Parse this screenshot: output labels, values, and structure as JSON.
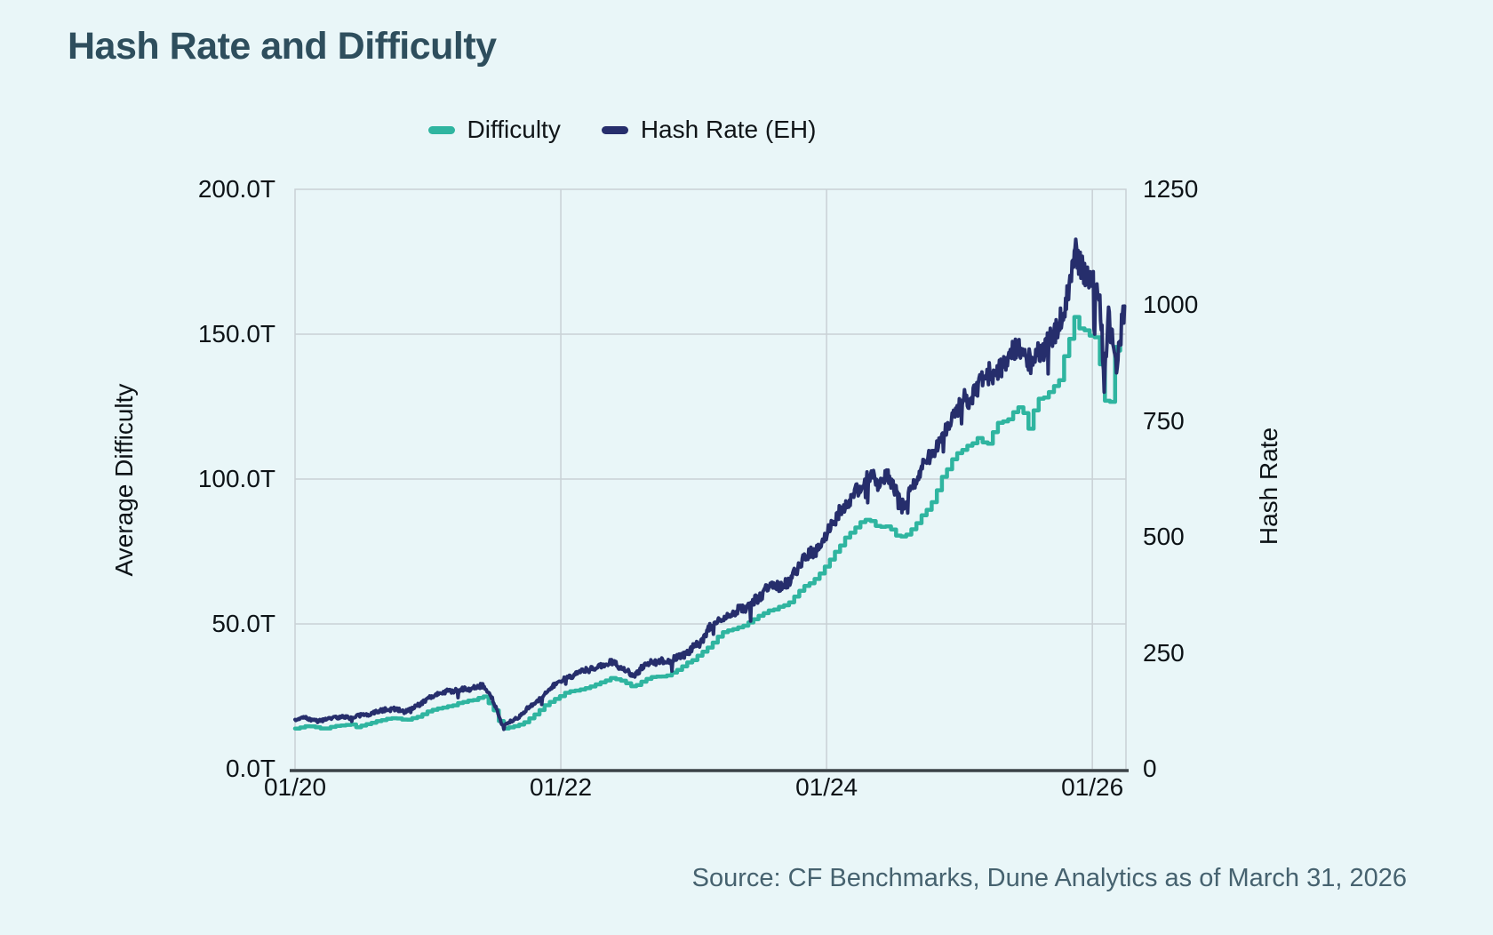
{
  "page": {
    "background": "#e9f6f8"
  },
  "header": {
    "title": "Hash Rate and Difficulty"
  },
  "legend": [
    {
      "label": "Difficulty",
      "color": "#2fb5a0"
    },
    {
      "label": "Hash Rate (EH)",
      "color": "#262e6c"
    }
  ],
  "footer": {
    "source": "Source: CF Benchmarks, Dune Analytics as of March 31, 2026"
  },
  "chart_data": {
    "type": "line",
    "title": "Hash Rate and Difficulty",
    "grid": true,
    "legend_position": "top-center",
    "style": {
      "grid_color": "#c9d1d5",
      "border_color": "#c9d1d5",
      "axis_line_color": "#3b4247",
      "plot_background": "#e9f6f8"
    },
    "x_axis": {
      "ticks": [
        "01/20",
        "01/22",
        "01/24",
        "01/26"
      ],
      "tick_years": [
        2020,
        2022,
        2024,
        2026
      ],
      "range_years": [
        2020.0,
        2026.253
      ],
      "data_end_year": 2026.245
    },
    "y_left": {
      "label": "Average Difficulty",
      "ticks": [
        "0.0T",
        "50.0T",
        "100.0T",
        "150.0T",
        "200.0T"
      ],
      "tick_values": [
        0,
        50,
        100,
        150,
        200
      ],
      "range": [
        0,
        200
      ]
    },
    "y_right": {
      "label": "Hash Rate",
      "ticks": [
        "0",
        "250",
        "500",
        "750",
        "1000",
        "1250"
      ],
      "tick_values": [
        0,
        250,
        500,
        750,
        1000,
        1250
      ],
      "range": [
        0,
        1250
      ]
    },
    "series": [
      {
        "name": "Difficulty",
        "axis": "left",
        "unit": "T",
        "color": "#2fb5a0",
        "line_style": "step",
        "step_interval_days": 14,
        "points": [
          [
            2020.0,
            13.9
          ],
          [
            2020.08,
            14.8
          ],
          [
            2020.17,
            14.2
          ],
          [
            2020.21,
            13.7
          ],
          [
            2020.29,
            14.7
          ],
          [
            2020.42,
            15.3
          ],
          [
            2020.46,
            14.4
          ],
          [
            2020.58,
            16.0
          ],
          [
            2020.67,
            17.0
          ],
          [
            2020.75,
            17.6
          ],
          [
            2020.83,
            16.8
          ],
          [
            2020.92,
            18.0
          ],
          [
            2021.0,
            19.8
          ],
          [
            2021.08,
            21.0
          ],
          [
            2021.17,
            21.7
          ],
          [
            2021.25,
            23.0
          ],
          [
            2021.33,
            23.7
          ],
          [
            2021.42,
            25.0
          ],
          [
            2021.5,
            19.9
          ],
          [
            2021.56,
            13.9
          ],
          [
            2021.63,
            14.5
          ],
          [
            2021.71,
            15.6
          ],
          [
            2021.79,
            18.3
          ],
          [
            2021.88,
            21.9
          ],
          [
            2021.96,
            24.2
          ],
          [
            2022.04,
            26.6
          ],
          [
            2022.13,
            27.3
          ],
          [
            2022.21,
            28.2
          ],
          [
            2022.29,
            29.8
          ],
          [
            2022.38,
            31.3
          ],
          [
            2022.46,
            30.3
          ],
          [
            2022.54,
            28.2
          ],
          [
            2022.63,
            30.9
          ],
          [
            2022.71,
            31.9
          ],
          [
            2022.79,
            32.0
          ],
          [
            2022.88,
            34.2
          ],
          [
            2022.96,
            36.8
          ],
          [
            2023.04,
            39.2
          ],
          [
            2023.13,
            43.0
          ],
          [
            2023.21,
            46.8
          ],
          [
            2023.29,
            48.0
          ],
          [
            2023.38,
            49.5
          ],
          [
            2023.46,
            52.3
          ],
          [
            2023.54,
            53.9
          ],
          [
            2023.63,
            55.6
          ],
          [
            2023.71,
            57.3
          ],
          [
            2023.79,
            61.0
          ],
          [
            2023.88,
            64.7
          ],
          [
            2023.96,
            67.9
          ],
          [
            2024.04,
            73.2
          ],
          [
            2024.13,
            79.1
          ],
          [
            2024.21,
            83.1
          ],
          [
            2024.29,
            86.4
          ],
          [
            2024.38,
            84.0
          ],
          [
            2024.46,
            83.7
          ],
          [
            2024.54,
            79.5
          ],
          [
            2024.63,
            82.0
          ],
          [
            2024.71,
            86.9
          ],
          [
            2024.79,
            92.0
          ],
          [
            2024.88,
            101.6
          ],
          [
            2024.96,
            108.5
          ],
          [
            2025.04,
            110.2
          ],
          [
            2025.13,
            113.8
          ],
          [
            2025.21,
            112.1
          ],
          [
            2025.29,
            119.0
          ],
          [
            2025.38,
            121.6
          ],
          [
            2025.46,
            126.4
          ],
          [
            2025.52,
            117.0
          ],
          [
            2025.58,
            127.3
          ],
          [
            2025.67,
            129.7
          ],
          [
            2025.75,
            134.9
          ],
          [
            2025.81,
            146.0
          ],
          [
            2025.86,
            155.8
          ],
          [
            2025.92,
            151.0
          ],
          [
            2025.98,
            150.2
          ],
          [
            2026.04,
            149.0
          ],
          [
            2026.08,
            126.8
          ],
          [
            2026.14,
            126.9
          ],
          [
            2026.17,
            145.0
          ],
          [
            2026.22,
            144.6
          ],
          [
            2026.24,
            134.2
          ]
        ]
      },
      {
        "name": "Hash Rate (EH)",
        "axis": "right",
        "unit": "EH",
        "color": "#262e6c",
        "line_style": "noisy-daily",
        "points": [
          [
            2020.0,
            106
          ],
          [
            2020.08,
            110
          ],
          [
            2020.17,
            104
          ],
          [
            2020.25,
            112
          ],
          [
            2020.33,
            116
          ],
          [
            2020.42,
            113
          ],
          [
            2020.5,
            120
          ],
          [
            2020.58,
            123
          ],
          [
            2020.67,
            130
          ],
          [
            2020.75,
            133
          ],
          [
            2020.83,
            128
          ],
          [
            2020.92,
            140
          ],
          [
            2021.0,
            150
          ],
          [
            2021.08,
            160
          ],
          [
            2021.17,
            166
          ],
          [
            2021.25,
            172
          ],
          [
            2021.33,
            176
          ],
          [
            2021.42,
            182
          ],
          [
            2021.48,
            160
          ],
          [
            2021.56,
            95
          ],
          [
            2021.63,
            105
          ],
          [
            2021.71,
            120
          ],
          [
            2021.79,
            140
          ],
          [
            2021.88,
            160
          ],
          [
            2021.96,
            178
          ],
          [
            2022.04,
            195
          ],
          [
            2022.13,
            202
          ],
          [
            2022.21,
            208
          ],
          [
            2022.29,
            218
          ],
          [
            2022.38,
            226
          ],
          [
            2022.46,
            216
          ],
          [
            2022.54,
            199
          ],
          [
            2022.63,
            220
          ],
          [
            2022.71,
            230
          ],
          [
            2022.79,
            236
          ],
          [
            2022.88,
            248
          ],
          [
            2022.96,
            258
          ],
          [
            2023.04,
            280
          ],
          [
            2023.13,
            310
          ],
          [
            2023.21,
            330
          ],
          [
            2023.29,
            342
          ],
          [
            2023.38,
            356
          ],
          [
            2023.46,
            375
          ],
          [
            2023.54,
            390
          ],
          [
            2023.63,
            404
          ],
          [
            2023.71,
            420
          ],
          [
            2023.79,
            442
          ],
          [
            2023.88,
            462
          ],
          [
            2023.96,
            485
          ],
          [
            2024.04,
            525
          ],
          [
            2024.13,
            575
          ],
          [
            2024.21,
            600
          ],
          [
            2024.29,
            618
          ],
          [
            2024.38,
            600
          ],
          [
            2024.46,
            615
          ],
          [
            2024.54,
            570
          ],
          [
            2024.58,
            545
          ],
          [
            2024.63,
            590
          ],
          [
            2024.71,
            625
          ],
          [
            2024.79,
            655
          ],
          [
            2024.88,
            705
          ],
          [
            2024.96,
            755
          ],
          [
            2025.04,
            780
          ],
          [
            2025.13,
            800
          ],
          [
            2025.21,
            815
          ],
          [
            2025.29,
            845
          ],
          [
            2025.38,
            862
          ],
          [
            2025.46,
            888
          ],
          [
            2025.54,
            905
          ],
          [
            2025.63,
            938
          ],
          [
            2025.71,
            972
          ],
          [
            2025.79,
            1030
          ],
          [
            2025.84,
            1100
          ],
          [
            2025.87,
            1170
          ],
          [
            2025.9,
            1115
          ],
          [
            2025.94,
            1090
          ],
          [
            2025.98,
            1085
          ],
          [
            2026.02,
            1070
          ],
          [
            2026.06,
            1040
          ],
          [
            2026.09,
            855
          ],
          [
            2026.12,
            1010
          ],
          [
            2026.15,
            950
          ],
          [
            2026.18,
            905
          ],
          [
            2026.21,
            975
          ],
          [
            2026.24,
            1020
          ]
        ]
      }
    ]
  }
}
